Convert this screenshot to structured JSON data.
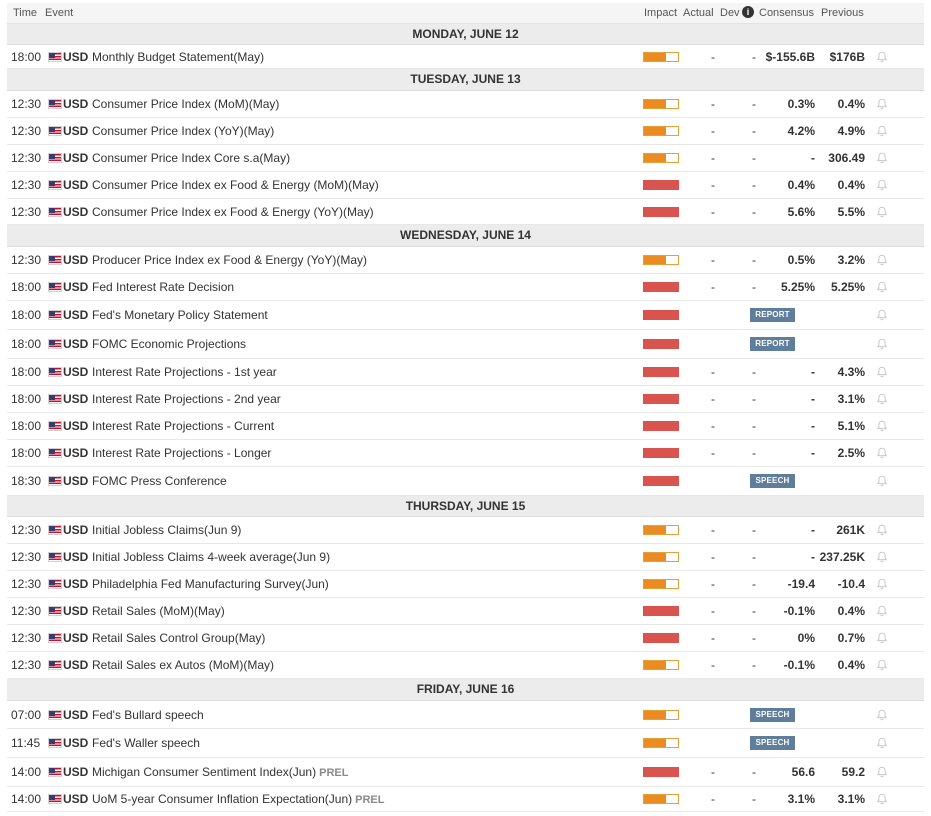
{
  "header": {
    "time": "Time",
    "event": "Event",
    "impact": "Impact",
    "actual": "Actual",
    "dev": "Dev",
    "consensus": "Consensus",
    "previous": "Previous"
  },
  "colors": {
    "medium_impact": "#ea8c22",
    "high_impact": "#d9534f",
    "badge": "#5f7e9c",
    "day_header": "#ececec"
  },
  "days": [
    {
      "label": "MONDAY, JUNE 12",
      "events": [
        {
          "time": "18:00",
          "currency": "USD",
          "name": "Monthly Budget Statement(May)",
          "tag": "",
          "impact": "medium",
          "impact_level": 0.66,
          "actual": "-",
          "dev": "-",
          "consensus": "$-155.6B",
          "previous": "$176B",
          "badge": ""
        }
      ]
    },
    {
      "label": "TUESDAY, JUNE 13",
      "events": [
        {
          "time": "12:30",
          "currency": "USD",
          "name": "Consumer Price Index (MoM)(May)",
          "tag": "",
          "impact": "medium",
          "impact_level": 0.66,
          "actual": "-",
          "dev": "-",
          "consensus": "0.3%",
          "previous": "0.4%",
          "badge": ""
        },
        {
          "time": "12:30",
          "currency": "USD",
          "name": "Consumer Price Index (YoY)(May)",
          "tag": "",
          "impact": "medium",
          "impact_level": 0.66,
          "actual": "-",
          "dev": "-",
          "consensus": "4.2%",
          "previous": "4.9%",
          "badge": ""
        },
        {
          "time": "12:30",
          "currency": "USD",
          "name": "Consumer Price Index Core s.a(May)",
          "tag": "",
          "impact": "medium",
          "impact_level": 0.66,
          "actual": "-",
          "dev": "-",
          "consensus": "-",
          "previous": "306.49",
          "badge": ""
        },
        {
          "time": "12:30",
          "currency": "USD",
          "name": "Consumer Price Index ex Food & Energy (MoM)(May)",
          "tag": "",
          "impact": "high",
          "impact_level": 1,
          "actual": "-",
          "dev": "-",
          "consensus": "0.4%",
          "previous": "0.4%",
          "badge": ""
        },
        {
          "time": "12:30",
          "currency": "USD",
          "name": "Consumer Price Index ex Food & Energy (YoY)(May)",
          "tag": "",
          "impact": "high",
          "impact_level": 1,
          "actual": "-",
          "dev": "-",
          "consensus": "5.6%",
          "previous": "5.5%",
          "badge": ""
        }
      ]
    },
    {
      "label": "WEDNESDAY, JUNE 14",
      "events": [
        {
          "time": "12:30",
          "currency": "USD",
          "name": "Producer Price Index ex Food & Energy (YoY)(May)",
          "tag": "",
          "impact": "medium",
          "impact_level": 0.66,
          "actual": "-",
          "dev": "-",
          "consensus": "0.5%",
          "previous": "3.2%",
          "badge": ""
        },
        {
          "time": "18:00",
          "currency": "USD",
          "name": "Fed Interest Rate Decision",
          "tag": "",
          "impact": "high",
          "impact_level": 1,
          "actual": "-",
          "dev": "-",
          "consensus": "5.25%",
          "previous": "5.25%",
          "badge": ""
        },
        {
          "time": "18:00",
          "currency": "USD",
          "name": "Fed's Monetary Policy Statement",
          "tag": "",
          "impact": "high",
          "impact_level": 1,
          "actual": "",
          "dev": "",
          "consensus": "",
          "previous": "",
          "badge": "REPORT"
        },
        {
          "time": "18:00",
          "currency": "USD",
          "name": "FOMC Economic Projections",
          "tag": "",
          "impact": "high",
          "impact_level": 1,
          "actual": "",
          "dev": "",
          "consensus": "",
          "previous": "",
          "badge": "REPORT"
        },
        {
          "time": "18:00",
          "currency": "USD",
          "name": "Interest Rate Projections - 1st year",
          "tag": "",
          "impact": "high",
          "impact_level": 1,
          "actual": "-",
          "dev": "-",
          "consensus": "-",
          "previous": "4.3%",
          "badge": ""
        },
        {
          "time": "18:00",
          "currency": "USD",
          "name": "Interest Rate Projections - 2nd year",
          "tag": "",
          "impact": "high",
          "impact_level": 1,
          "actual": "-",
          "dev": "-",
          "consensus": "-",
          "previous": "3.1%",
          "badge": ""
        },
        {
          "time": "18:00",
          "currency": "USD",
          "name": "Interest Rate Projections - Current",
          "tag": "",
          "impact": "high",
          "impact_level": 1,
          "actual": "-",
          "dev": "-",
          "consensus": "-",
          "previous": "5.1%",
          "badge": ""
        },
        {
          "time": "18:00",
          "currency": "USD",
          "name": "Interest Rate Projections - Longer",
          "tag": "",
          "impact": "high",
          "impact_level": 1,
          "actual": "-",
          "dev": "-",
          "consensus": "-",
          "previous": "2.5%",
          "badge": ""
        },
        {
          "time": "18:30",
          "currency": "USD",
          "name": "FOMC Press Conference",
          "tag": "",
          "impact": "high",
          "impact_level": 1,
          "actual": "",
          "dev": "",
          "consensus": "",
          "previous": "",
          "badge": "SPEECH"
        }
      ]
    },
    {
      "label": "THURSDAY, JUNE 15",
      "events": [
        {
          "time": "12:30",
          "currency": "USD",
          "name": "Initial Jobless Claims(Jun 9)",
          "tag": "",
          "impact": "medium",
          "impact_level": 0.66,
          "actual": "-",
          "dev": "-",
          "consensus": "-",
          "previous": "261K",
          "badge": ""
        },
        {
          "time": "12:30",
          "currency": "USD",
          "name": "Initial Jobless Claims 4-week average(Jun 9)",
          "tag": "",
          "impact": "medium",
          "impact_level": 0.66,
          "actual": "-",
          "dev": "-",
          "consensus": "-",
          "previous": "237.25K",
          "badge": ""
        },
        {
          "time": "12:30",
          "currency": "USD",
          "name": "Philadelphia Fed Manufacturing Survey(Jun)",
          "tag": "",
          "impact": "medium",
          "impact_level": 0.66,
          "actual": "-",
          "dev": "-",
          "consensus": "-19.4",
          "previous": "-10.4",
          "badge": ""
        },
        {
          "time": "12:30",
          "currency": "USD",
          "name": "Retail Sales (MoM)(May)",
          "tag": "",
          "impact": "high",
          "impact_level": 1,
          "actual": "-",
          "dev": "-",
          "consensus": "-0.1%",
          "previous": "0.4%",
          "badge": ""
        },
        {
          "time": "12:30",
          "currency": "USD",
          "name": "Retail Sales Control Group(May)",
          "tag": "",
          "impact": "high",
          "impact_level": 1,
          "actual": "-",
          "dev": "-",
          "consensus": "0%",
          "previous": "0.7%",
          "badge": ""
        },
        {
          "time": "12:30",
          "currency": "USD",
          "name": "Retail Sales ex Autos (MoM)(May)",
          "tag": "",
          "impact": "medium",
          "impact_level": 0.66,
          "actual": "-",
          "dev": "-",
          "consensus": "-0.1%",
          "previous": "0.4%",
          "badge": ""
        }
      ]
    },
    {
      "label": "FRIDAY, JUNE 16",
      "events": [
        {
          "time": "07:00",
          "currency": "USD",
          "name": "Fed's Bullard speech",
          "tag": "",
          "impact": "medium",
          "impact_level": 0.66,
          "actual": "",
          "dev": "",
          "consensus": "",
          "previous": "",
          "badge": "SPEECH"
        },
        {
          "time": "11:45",
          "currency": "USD",
          "name": "Fed's Waller speech",
          "tag": "",
          "impact": "medium",
          "impact_level": 0.66,
          "actual": "",
          "dev": "",
          "consensus": "",
          "previous": "",
          "badge": "SPEECH"
        },
        {
          "time": "14:00",
          "currency": "USD",
          "name": "Michigan Consumer Sentiment Index(Jun)",
          "tag": "PREL",
          "impact": "high",
          "impact_level": 1,
          "actual": "-",
          "dev": "-",
          "consensus": "56.6",
          "previous": "59.2",
          "badge": ""
        },
        {
          "time": "14:00",
          "currency": "USD",
          "name": "UoM 5-year Consumer Inflation Expectation(Jun)",
          "tag": "PREL",
          "impact": "medium",
          "impact_level": 0.66,
          "actual": "-",
          "dev": "-",
          "consensus": "3.1%",
          "previous": "3.1%",
          "badge": ""
        }
      ]
    }
  ]
}
